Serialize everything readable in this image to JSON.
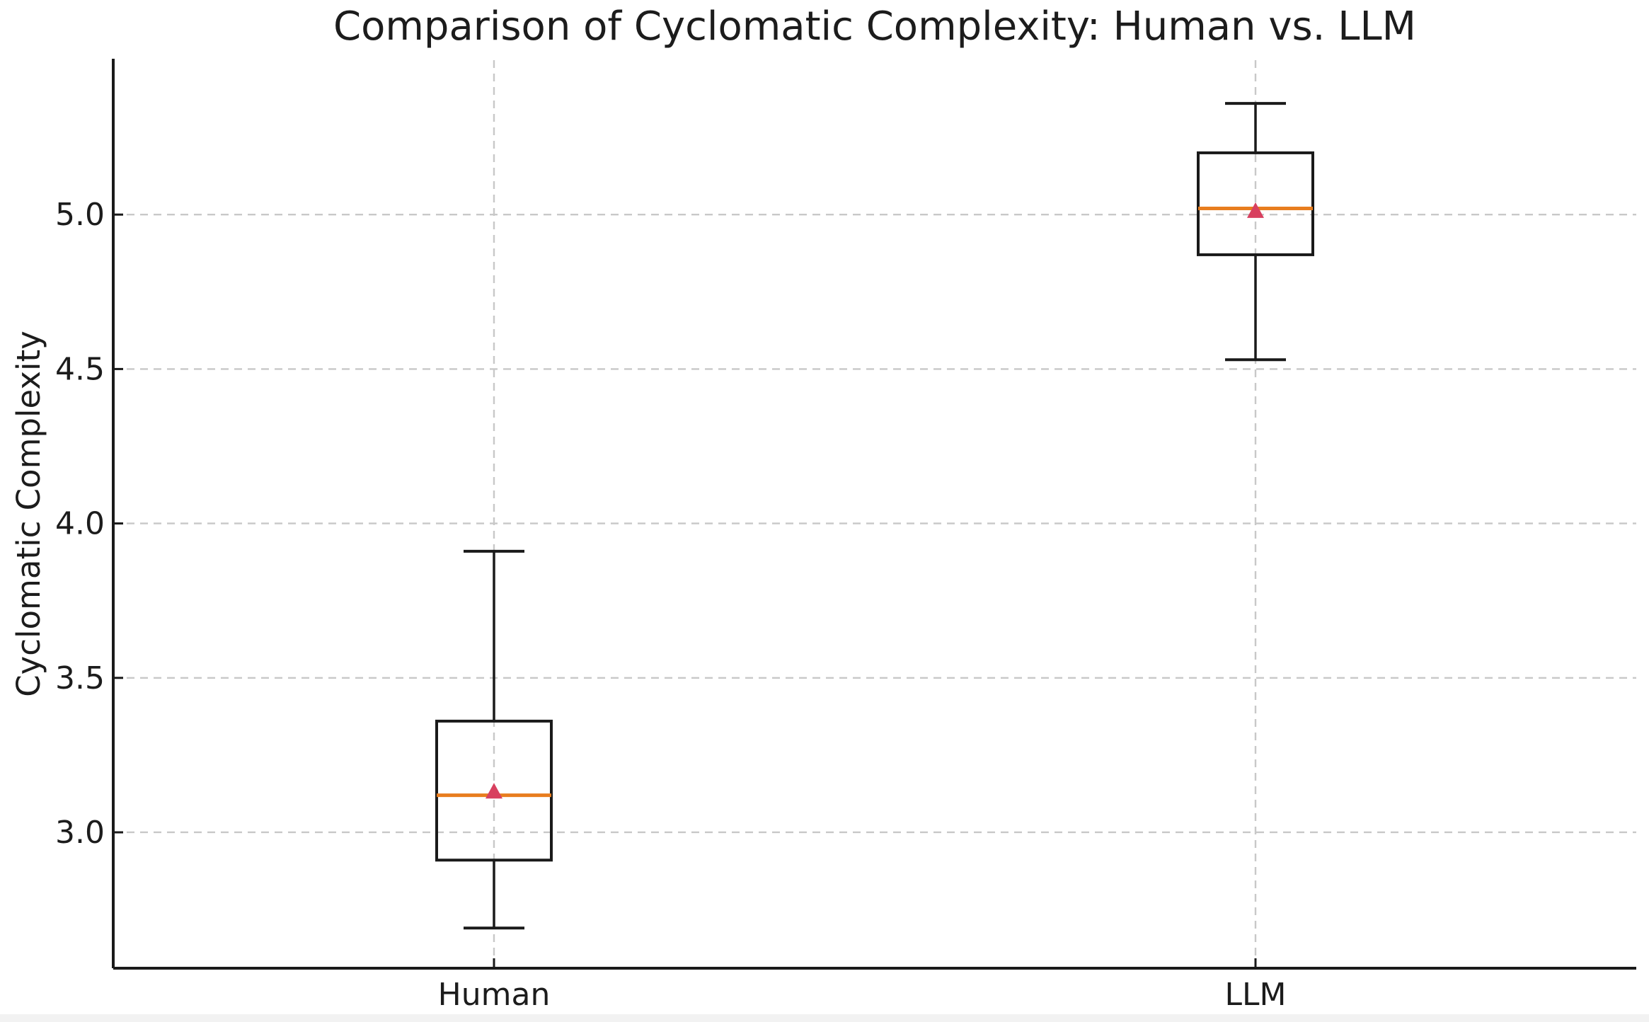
{
  "chart_data": {
    "type": "boxplot",
    "title": "Comparison of Cyclomatic Complexity: Human vs. LLM",
    "ylabel": "Cyclomatic Complexity",
    "xlabel": "",
    "categories": [
      "Human",
      "LLM"
    ],
    "yticks": [
      "3.0",
      "3.5",
      "4.0",
      "4.5",
      "5.0"
    ],
    "ytick_values": [
      3.0,
      3.5,
      4.0,
      4.5,
      5.0
    ],
    "ylim": [
      2.56,
      5.5
    ],
    "grid": "dashed gridlines on both axes",
    "legend": "none",
    "series": [
      {
        "name": "Human",
        "whisker_low": 2.69,
        "q1": 2.91,
        "median": 3.12,
        "mean": 3.13,
        "q3": 3.36,
        "whisker_high": 3.91
      },
      {
        "name": "LLM",
        "whisker_low": 4.53,
        "q1": 4.87,
        "median": 5.02,
        "mean": 5.01,
        "q3": 5.2,
        "whisker_high": 5.36
      }
    ],
    "colors": {
      "median": "#e87d1e",
      "mean_marker": "#d8405f",
      "box": "#1a1a1a",
      "grid": "#c8c8c8",
      "text": "#1c1c1c"
    }
  }
}
